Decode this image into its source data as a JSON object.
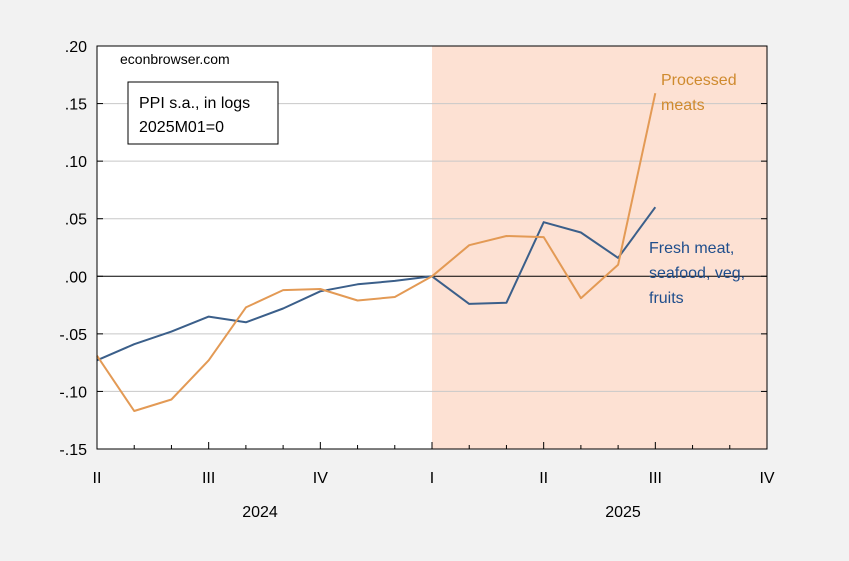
{
  "chart_data": {
    "type": "line",
    "watermark": "econbrowser.com",
    "legend_box": {
      "line1": "PPI s.a., in logs",
      "line2": "2025M01=0"
    },
    "y_ticks": [
      ".20",
      ".15",
      ".10",
      ".05",
      ".00",
      "-.05",
      "-.10",
      "-.15"
    ],
    "ylim": [
      -0.15,
      0.2
    ],
    "x_quarter_labels": [
      "II",
      "III",
      "IV",
      "I",
      "II",
      "III",
      "IV"
    ],
    "x_year_labels": [
      "2024",
      "2025"
    ],
    "x_months": [
      "2024-04",
      "2024-05",
      "2024-06",
      "2024-07",
      "2024-08",
      "2024-09",
      "2024-10",
      "2024-11",
      "2024-12",
      "2025-01",
      "2025-02",
      "2025-03",
      "2025-04",
      "2025-05",
      "2025-06",
      "2025-07"
    ],
    "shaded_start": "2025-01",
    "series": [
      {
        "name_lines": [
          "Fresh meat,",
          "seafood, veg,",
          "fruits"
        ],
        "color": "#3b5f8a",
        "values": [
          -0.073,
          -0.059,
          -0.048,
          -0.035,
          -0.04,
          -0.028,
          -0.013,
          -0.007,
          -0.004,
          0.0,
          -0.024,
          -0.023,
          0.047,
          0.038,
          0.016,
          0.06
        ]
      },
      {
        "name_lines": [
          "Processed",
          "meats"
        ],
        "color": "#e39a55",
        "values": [
          -0.069,
          -0.117,
          -0.107,
          -0.073,
          -0.027,
          -0.012,
          -0.011,
          -0.021,
          -0.018,
          0.0,
          0.027,
          0.035,
          0.034,
          -0.019,
          0.01,
          0.159
        ]
      }
    ],
    "colors": {
      "shade": "#fde1d3",
      "zero_line": "#000000",
      "grid": "#c8c8c8",
      "fresh_label": "#1f4e8c",
      "processed_label": "#cf8a2e"
    }
  }
}
